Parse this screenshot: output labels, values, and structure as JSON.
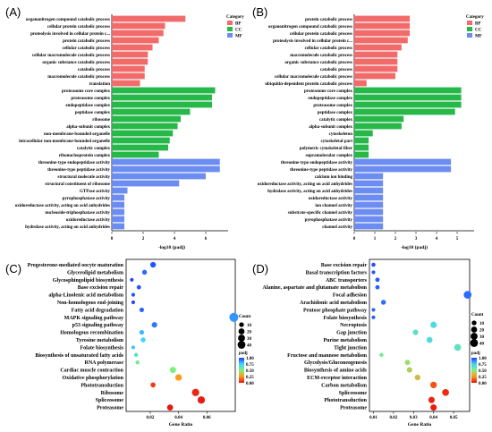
{
  "colors": {
    "BP": "#f26b6b",
    "CC": "#27b84a",
    "MF": "#6b8cf0",
    "gradient": [
      "#1f3bff",
      "#3fd3ff",
      "#7ff07f",
      "#ff9a1a",
      "#e81010"
    ]
  },
  "chart_data": [
    {
      "type": "bar",
      "orientation": "horizontal",
      "panel_label": "(A)",
      "xlabel": "-log10 (padj)",
      "xlim": [
        0,
        8
      ],
      "xticks": [
        0,
        2,
        4,
        6
      ],
      "legend": {
        "title": "Category",
        "entries": [
          "BP",
          "CC",
          "MF"
        ],
        "placement": "top-right"
      },
      "categories": [
        "organonitrogen compound catabolic process",
        "cellular protein catabolic process",
        "proteolysis involved in cellular protein c...",
        "protein catabolic process",
        "cellular catabolic process",
        "cellular macromolecule catabolic process",
        "organic substance catabolic process",
        "catabolic process",
        "macromolecule catabolic process",
        "translation",
        "proteasome core complex",
        "proteasome complex",
        "endopeptidase complex",
        "peptidase complex",
        "ribosome",
        "alpha-subunit complex",
        "non-membrane-bounded organelle",
        "intracellular non-membrane-bounded organelle",
        "catalytic complex",
        "ribonucleoprotein complex",
        "threonine-type endopeptidase activity",
        "threonine-type peptidase activity",
        "structural molecule activity",
        "structural constituent of ribosome",
        "GTPase activity",
        "pyrophosphatase activity",
        "oxidoreductase activity, acting on acid anhydrides",
        "nucleoside-triphosphatase activity",
        "oxidoreductase activity",
        "hydrolase activity, acting on acid anhydrides"
      ],
      "group": [
        "BP",
        "BP",
        "BP",
        "BP",
        "BP",
        "BP",
        "BP",
        "BP",
        "BP",
        "BP",
        "CC",
        "CC",
        "CC",
        "CC",
        "CC",
        "CC",
        "CC",
        "CC",
        "CC",
        "CC",
        "MF",
        "MF",
        "MF",
        "MF",
        "MF",
        "MF",
        "MF",
        "MF",
        "MF",
        "MF"
      ],
      "values": [
        4.7,
        3.4,
        3.3,
        3.0,
        2.6,
        2.3,
        2.3,
        2.1,
        2.1,
        1.8,
        6.6,
        6.4,
        6.4,
        5.0,
        4.4,
        4.2,
        3.9,
        3.7,
        3.6,
        3.0,
        6.9,
        6.9,
        6.0,
        4.3,
        1.0,
        0.8,
        0.8,
        0.8,
        0.8,
        0.8
      ]
    },
    {
      "type": "bar",
      "orientation": "horizontal",
      "panel_label": "(B)",
      "xlabel": "-log10 (padj)",
      "xlim": [
        0,
        5.6
      ],
      "xticks": [
        0,
        1,
        2,
        3,
        4,
        5
      ],
      "legend": {
        "title": "Category",
        "entries": [
          "BP",
          "CC",
          "MF"
        ],
        "placement": "top-right"
      },
      "categories": [
        "protein catabolic process",
        "organonitrogen compound catabolic process",
        "cellular protein catabolic process",
        "proteolysis involved in cellular protein c...",
        "cellular catabolic process",
        "macromolecule catabolic process",
        "organic substance catabolic process",
        "catabolic process",
        "cellular macromolecule catabolic process",
        "ubiquitin-dependent protein catabolic process",
        "proteasome core complex",
        "endopeptidase complex",
        "proteasome complex",
        "peptidase complex",
        "catalytic complex",
        "alpha-subunit complex",
        "cytoskeleton",
        "cytoskeletal part",
        "polymeric cytoskeletal fiber",
        "supramolecular complex",
        "threonine-type endopeptidase activity",
        "threonine-type peptidase activity",
        "calcium ion binding",
        "oxidoreductase activity, acting on acid anhydrides",
        "hydrolase activity, acting on acid anhydrides",
        "oxidoreductase activity",
        "ion channel activity",
        "substrate-specific channel activity",
        "pyrophosphatase activity",
        "channel activity"
      ],
      "group": [
        "BP",
        "BP",
        "BP",
        "BP",
        "BP",
        "BP",
        "BP",
        "BP",
        "BP",
        "BP",
        "CC",
        "CC",
        "CC",
        "CC",
        "CC",
        "CC",
        "CC",
        "CC",
        "CC",
        "CC",
        "MF",
        "MF",
        "MF",
        "MF",
        "MF",
        "MF",
        "MF",
        "MF",
        "MF",
        "MF"
      ],
      "values": [
        2.7,
        2.7,
        2.7,
        2.6,
        2.3,
        2.1,
        2.1,
        2.1,
        2.0,
        0.6,
        5.2,
        5.2,
        5.2,
        4.9,
        2.4,
        2.3,
        0.9,
        0.7,
        0.7,
        0.7,
        4.7,
        4.7,
        1.4,
        1.4,
        1.4,
        1.4,
        1.4,
        1.4,
        1.4,
        1.4
      ]
    },
    {
      "type": "scatter",
      "panel_label": "(C)",
      "xlabel": "Gene Ratio",
      "xlim": [
        0.003,
        0.08
      ],
      "xticks": [
        0.02,
        0.04,
        0.06
      ],
      "size_legend": {
        "title": "Count",
        "values": [
          10,
          20,
          30,
          40
        ]
      },
      "color_legend": {
        "title": "padj",
        "ticks": [
          "1.00",
          "0.75",
          "0.50",
          "0.25",
          "0.00"
        ]
      },
      "categories": [
        "Progesterone-mediated oocyte maturation",
        "Glycerolipid metabolism",
        "Glycosphingolipid biosynthesis",
        "Base excision repair",
        "alpha-Linolenic acid metabolism",
        "Non-homologous end-joining",
        "Fatty acid degradation",
        "MAPK signaling pathway",
        "p53 signaling pathway",
        "Homologous recombination",
        "Tyrosine metabolism",
        "Folate biosynthesis",
        "Biosynthesis of unsaturated fatty acids",
        "RNA polymerase",
        "Cardiac muscle contraction",
        "Oxidative phosphorylation",
        "Phototransduction",
        "Ribosome",
        "Spliceosome",
        "Proteasome"
      ],
      "x": [
        0.022,
        0.016,
        0.007,
        0.012,
        0.008,
        0.008,
        0.014,
        0.079,
        0.023,
        0.014,
        0.015,
        0.008,
        0.01,
        0.011,
        0.036,
        0.04,
        0.022,
        0.052,
        0.056,
        0.034
      ],
      "count": [
        10,
        6,
        2,
        4,
        2,
        2,
        5,
        38,
        9,
        5,
        6,
        2,
        3,
        3,
        14,
        16,
        7,
        22,
        22,
        12
      ],
      "padj": [
        0.96,
        0.92,
        0.98,
        0.95,
        0.97,
        0.98,
        0.93,
        0.85,
        0.9,
        0.8,
        0.75,
        0.78,
        0.65,
        0.55,
        0.5,
        0.25,
        0.08,
        0.04,
        0.02,
        0.01
      ]
    },
    {
      "type": "scatter",
      "panel_label": "(D)",
      "xlabel": "Gene Ratio",
      "xlim": [
        0.008,
        0.058
      ],
      "xticks": [
        0.01,
        0.02,
        0.03,
        0.04,
        0.05
      ],
      "size_legend": {
        "title": "Count",
        "values": [
          10,
          20,
          30,
          40
        ]
      },
      "color_legend": {
        "title": "padj",
        "ticks": [
          "1.00",
          "0.75",
          "0.50",
          "0.25",
          "0.00"
        ]
      },
      "categories": [
        "Base excision repair",
        "Basal transcription factors",
        "ABC transporters",
        "Alanine, aspartate and glutamate metabolism",
        "Focal adhesion",
        "Arachidonic acid metabolism",
        "Pentose phosphate pathway",
        "Folate biosynthesis",
        "Necroptosis",
        "Gap junction",
        "Purine metabolism",
        "Tight junction",
        "Fructose and mannose metabolism",
        "Glycolysis/Gluconeogenesis",
        "Biosynthesis of amino acids",
        "ECM-receptor interaction",
        "Carbon metabolism",
        "Spliceosome",
        "Phototransduction",
        "Proteasome"
      ],
      "x": [
        0.01,
        0.01,
        0.012,
        0.012,
        0.057,
        0.015,
        0.01,
        0.01,
        0.04,
        0.031,
        0.038,
        0.052,
        0.014,
        0.027,
        0.028,
        0.032,
        0.04,
        0.046,
        0.039,
        0.04
      ],
      "count": [
        3,
        2,
        4,
        4,
        26,
        6,
        2,
        2,
        14,
        9,
        12,
        18,
        3,
        8,
        9,
        10,
        16,
        18,
        14,
        14
      ],
      "padj": [
        0.97,
        0.96,
        0.95,
        0.94,
        0.92,
        0.92,
        0.93,
        0.94,
        0.7,
        0.65,
        0.68,
        0.62,
        0.55,
        0.45,
        0.4,
        0.35,
        0.12,
        0.05,
        0.03,
        0.02
      ]
    }
  ]
}
